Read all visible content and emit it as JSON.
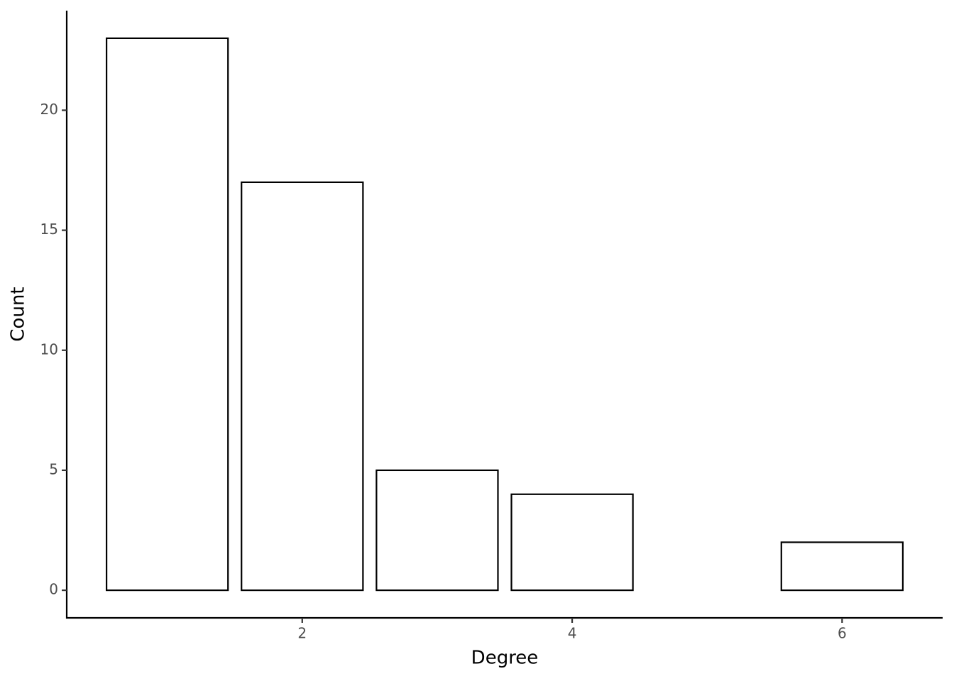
{
  "chart_data": {
    "type": "bar",
    "x_label": "Degree",
    "y_label": "Count",
    "x": [
      1,
      2,
      3,
      4,
      6
    ],
    "values": [
      23,
      17,
      5,
      4,
      2
    ],
    "color": "#ffffff",
    "edge_color": "#000000",
    "xlim": [
      0.255,
      6.745
    ],
    "xticks": [
      2,
      4,
      6
    ],
    "ylim": [
      -1.15,
      24.15
    ],
    "yticks": [
      0,
      5,
      10,
      15,
      20
    ],
    "grid": false
  }
}
